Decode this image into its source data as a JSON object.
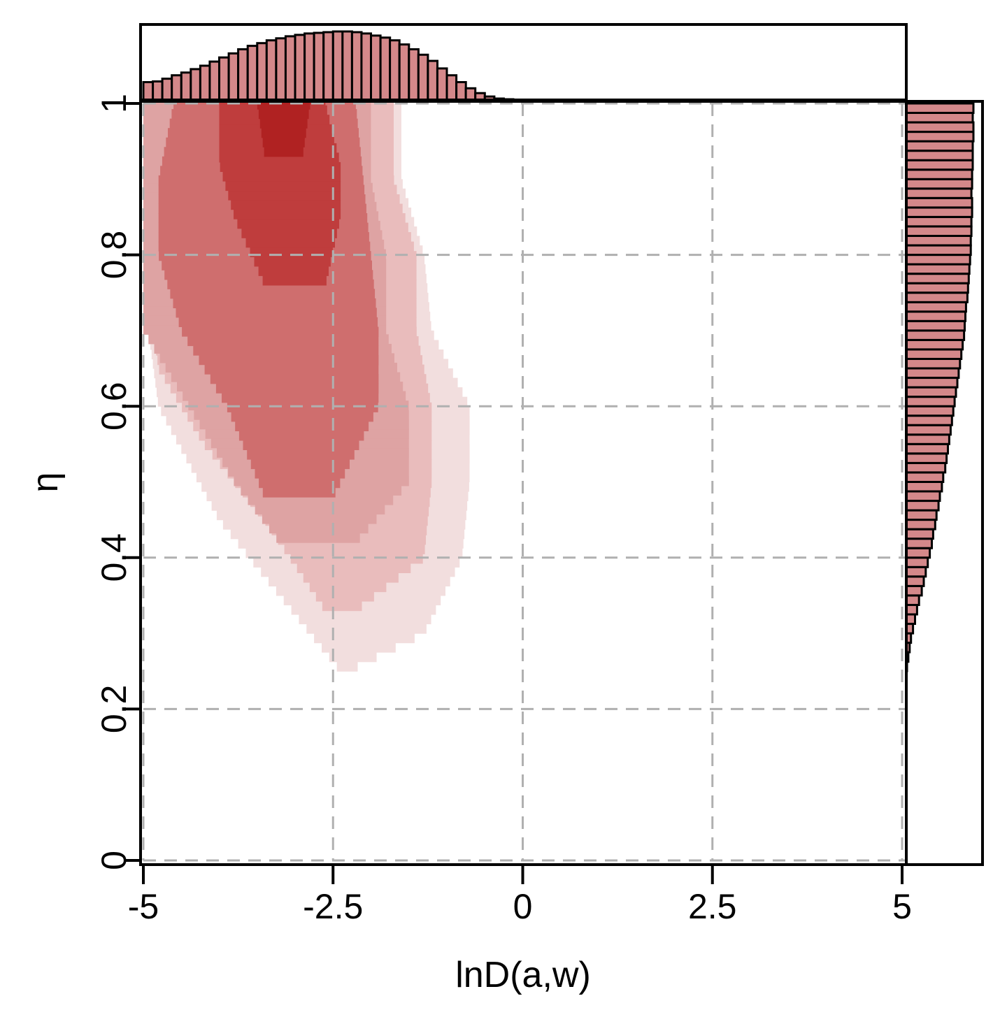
{
  "chart_data": {
    "type": "heatmap",
    "title": "",
    "xlabel": "lnD(a,w)",
    "ylabel": "η",
    "xlim": [
      -5,
      6
    ],
    "ylim": [
      0,
      1
    ],
    "x_ticks": [
      -5,
      -2.5,
      0,
      2.5,
      5
    ],
    "x_tick_labels": [
      "-5",
      "-2.5",
      "0",
      "2.5",
      "5"
    ],
    "y_ticks": [
      0,
      0.2,
      0.4,
      0.6,
      0.8,
      1
    ],
    "y_tick_labels": [
      "0",
      "0.2",
      "0.4",
      "0.6",
      "0.8",
      "1"
    ],
    "grid": true,
    "grid_style": "dashed",
    "colors": {
      "level_1": "#f2dede",
      "level_2": "#e9bcbc",
      "level_3": "#dea3a3",
      "level_4": "#cf6e6e",
      "level_5": "#bf3d3d",
      "level_6": "#b02222",
      "histogram_fill": "#d4888a",
      "grid": "#b0b0b0"
    },
    "density_regions": [
      {
        "level": 1,
        "y_range": [
          0.25,
          1.0
        ],
        "x_left_at": [
          [
            0.25,
            -2.4
          ],
          [
            0.35,
            -3.2
          ],
          [
            0.45,
            -4.0
          ],
          [
            0.6,
            -4.8
          ],
          [
            0.75,
            -5.0
          ],
          [
            1.0,
            -5.0
          ]
        ],
        "x_right_at": [
          [
            0.25,
            -2.3
          ],
          [
            0.3,
            -1.3
          ],
          [
            0.4,
            -0.8
          ],
          [
            0.5,
            -0.7
          ],
          [
            0.6,
            -0.7
          ],
          [
            0.7,
            -1.2
          ],
          [
            0.8,
            -1.3
          ],
          [
            0.9,
            -1.6
          ],
          [
            1.0,
            -1.6
          ]
        ]
      },
      {
        "level": 2,
        "y_range": [
          0.33,
          1.0
        ],
        "x_left_at": [
          [
            0.33,
            -2.6
          ],
          [
            0.45,
            -3.4
          ],
          [
            0.55,
            -4.2
          ],
          [
            0.65,
            -4.8
          ],
          [
            0.8,
            -5.0
          ],
          [
            1.0,
            -5.0
          ]
        ],
        "x_right_at": [
          [
            0.33,
            -2.2
          ],
          [
            0.4,
            -1.3
          ],
          [
            0.5,
            -1.2
          ],
          [
            0.6,
            -1.2
          ],
          [
            0.7,
            -1.4
          ],
          [
            0.8,
            -1.4
          ],
          [
            0.9,
            -1.7
          ],
          [
            1.0,
            -1.7
          ]
        ]
      },
      {
        "level": 3,
        "y_range": [
          0.42,
          1.0
        ],
        "x_left_at": [
          [
            0.42,
            -3.2
          ],
          [
            0.5,
            -3.8
          ],
          [
            0.6,
            -4.4
          ],
          [
            0.7,
            -5.0
          ],
          [
            1.0,
            -5.0
          ]
        ],
        "x_right_at": [
          [
            0.42,
            -2.2
          ],
          [
            0.5,
            -1.5
          ],
          [
            0.6,
            -1.5
          ],
          [
            0.7,
            -1.8
          ],
          [
            0.8,
            -1.8
          ],
          [
            0.9,
            -2.0
          ],
          [
            1.0,
            -2.0
          ]
        ]
      },
      {
        "level": 4,
        "y_range": [
          0.48,
          1.0
        ],
        "x_left_at": [
          [
            0.48,
            -3.4
          ],
          [
            0.6,
            -3.9
          ],
          [
            0.7,
            -4.5
          ],
          [
            0.8,
            -4.8
          ],
          [
            0.9,
            -4.8
          ],
          [
            1.0,
            -4.6
          ]
        ],
        "x_right_at": [
          [
            0.48,
            -2.5
          ],
          [
            0.6,
            -1.9
          ],
          [
            0.7,
            -1.9
          ],
          [
            0.8,
            -2.0
          ],
          [
            0.9,
            -2.1
          ],
          [
            1.0,
            -2.2
          ]
        ]
      },
      {
        "level": 5,
        "y_range": [
          0.76,
          1.0
        ],
        "x_left_at": [
          [
            0.76,
            -3.4
          ],
          [
            0.85,
            -3.8
          ],
          [
            0.92,
            -4.0
          ],
          [
            1.0,
            -4.0
          ]
        ],
        "x_right_at": [
          [
            0.76,
            -2.6
          ],
          [
            0.85,
            -2.4
          ],
          [
            0.92,
            -2.4
          ],
          [
            1.0,
            -2.6
          ]
        ]
      },
      {
        "level": 6,
        "y_range": [
          0.93,
          1.0
        ],
        "x_left_at": [
          [
            0.93,
            -3.4
          ],
          [
            1.0,
            -3.5
          ]
        ],
        "x_right_at": [
          [
            0.93,
            -2.9
          ],
          [
            1.0,
            -2.8
          ]
        ]
      }
    ],
    "x_marginal_histogram": {
      "bin_width": 0.125,
      "x_start": -5.0,
      "counts": [
        0.26,
        0.27,
        0.31,
        0.36,
        0.4,
        0.45,
        0.5,
        0.56,
        0.62,
        0.68,
        0.74,
        0.79,
        0.83,
        0.87,
        0.9,
        0.93,
        0.95,
        0.97,
        0.98,
        0.99,
        1.0,
        1.0,
        0.99,
        0.97,
        0.94,
        0.91,
        0.87,
        0.81,
        0.74,
        0.66,
        0.57,
        0.46,
        0.36,
        0.26,
        0.17,
        0.1,
        0.05,
        0.02,
        0.01
      ]
    },
    "y_marginal_histogram": {
      "bin_width": 0.0125,
      "y_start": 0.25,
      "counts": [
        0.01,
        0.03,
        0.05,
        0.07,
        0.1,
        0.13,
        0.16,
        0.19,
        0.23,
        0.26,
        0.29,
        0.32,
        0.35,
        0.38,
        0.4,
        0.43,
        0.45,
        0.48,
        0.5,
        0.53,
        0.55,
        0.58,
        0.6,
        0.62,
        0.64,
        0.66,
        0.68,
        0.7,
        0.72,
        0.74,
        0.76,
        0.78,
        0.8,
        0.82,
        0.84,
        0.86,
        0.87,
        0.88,
        0.89,
        0.91,
        0.92,
        0.93,
        0.94,
        0.95,
        0.96,
        0.96,
        0.97,
        0.97,
        0.98,
        0.98,
        0.97,
        0.98,
        0.98,
        0.99,
        0.99,
        0.99,
        1.0,
        1.0,
        0.99,
        1.0
      ]
    }
  }
}
